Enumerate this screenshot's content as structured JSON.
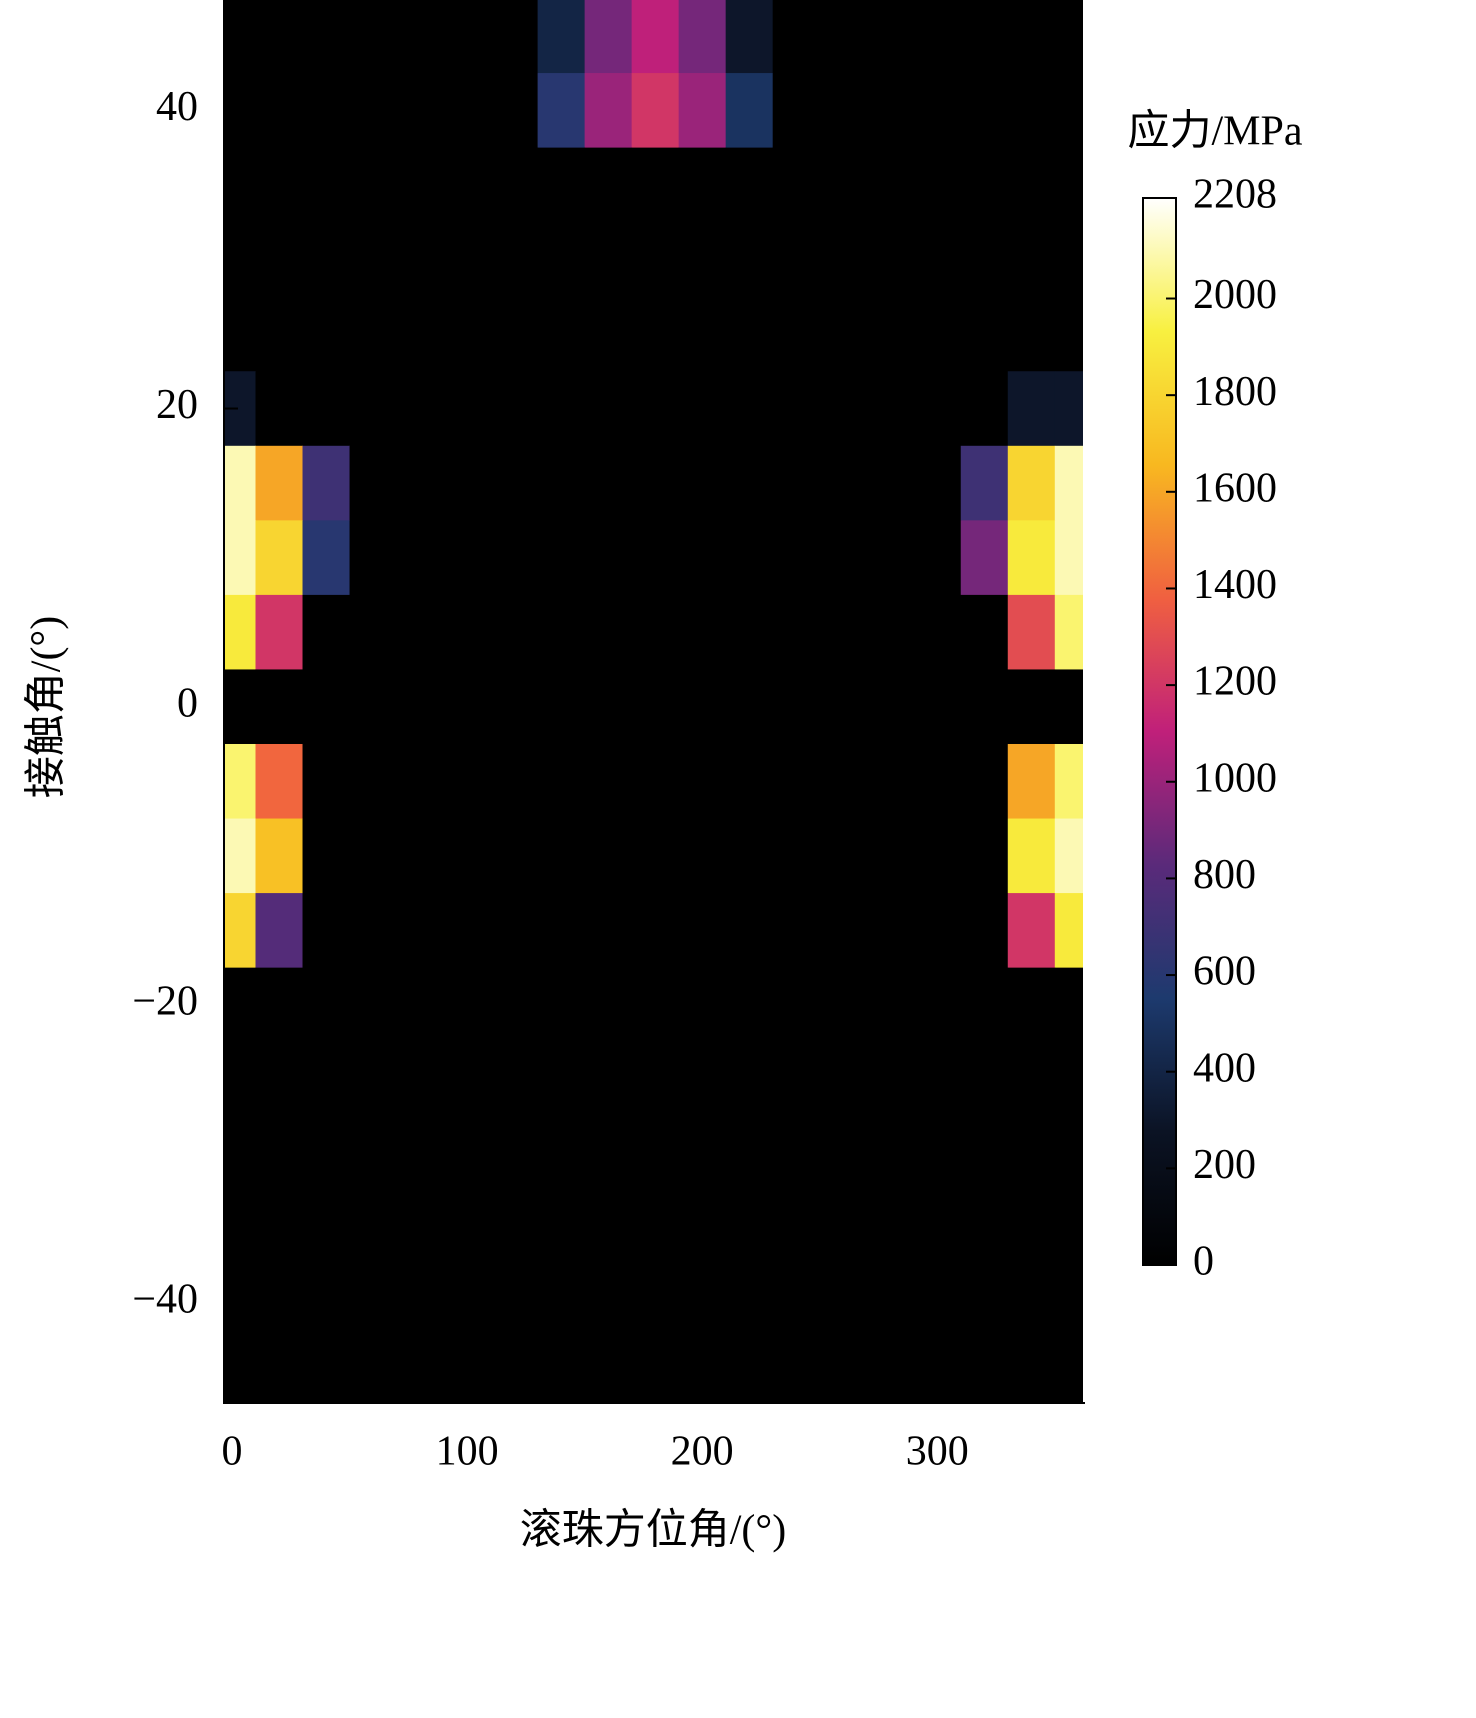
{
  "chart_data": {
    "type": "heatmap",
    "x_label": "滚珠方位角/(°)",
    "y_label": "接触角/(°)",
    "colorbar_label": "应力/MPa",
    "x": [
      0,
      20,
      40,
      60,
      80,
      100,
      120,
      140,
      160,
      180,
      200,
      220,
      240,
      260,
      280,
      300,
      320,
      340,
      360
    ],
    "y": [
      45,
      40,
      35,
      30,
      25,
      20,
      15,
      10,
      5,
      0,
      -5,
      -10,
      -15,
      -20,
      -25,
      -30,
      -35,
      -40,
      -45
    ],
    "z": [
      [
        0,
        0,
        0,
        0,
        0,
        0,
        0,
        400,
        900,
        1100,
        900,
        300,
        0,
        0,
        0,
        0,
        0,
        0,
        0
      ],
      [
        0,
        0,
        0,
        0,
        0,
        0,
        0,
        600,
        1000,
        1200,
        1000,
        500,
        0,
        0,
        0,
        0,
        0,
        0,
        0
      ],
      [
        0,
        0,
        0,
        0,
        0,
        0,
        0,
        0,
        0,
        0,
        0,
        0,
        0,
        0,
        0,
        0,
        0,
        0,
        0
      ],
      [
        0,
        0,
        0,
        0,
        0,
        0,
        0,
        0,
        0,
        0,
        0,
        0,
        0,
        0,
        0,
        0,
        0,
        0,
        0
      ],
      [
        0,
        0,
        0,
        0,
        0,
        0,
        0,
        0,
        0,
        0,
        0,
        0,
        0,
        0,
        0,
        0,
        0,
        0,
        0
      ],
      [
        300,
        0,
        0,
        0,
        0,
        0,
        0,
        0,
        0,
        0,
        0,
        0,
        0,
        0,
        0,
        0,
        0,
        300,
        300
      ],
      [
        2100,
        1600,
        700,
        0,
        0,
        0,
        0,
        0,
        0,
        0,
        0,
        0,
        0,
        0,
        0,
        0,
        700,
        1800,
        2100
      ],
      [
        2100,
        1800,
        600,
        0,
        0,
        0,
        0,
        0,
        0,
        0,
        0,
        0,
        0,
        0,
        0,
        0,
        900,
        1900,
        2100
      ],
      [
        1900,
        1200,
        0,
        0,
        0,
        0,
        0,
        0,
        0,
        0,
        0,
        0,
        0,
        0,
        0,
        0,
        0,
        1300,
        2000
      ],
      [
        0,
        0,
        0,
        0,
        0,
        0,
        0,
        0,
        0,
        0,
        0,
        0,
        0,
        0,
        0,
        0,
        0,
        0,
        0
      ],
      [
        2000,
        1400,
        0,
        0,
        0,
        0,
        0,
        0,
        0,
        0,
        0,
        0,
        0,
        0,
        0,
        0,
        0,
        1600,
        2000
      ],
      [
        2100,
        1700,
        0,
        0,
        0,
        0,
        0,
        0,
        0,
        0,
        0,
        0,
        0,
        0,
        0,
        0,
        0,
        1900,
        2100
      ],
      [
        1800,
        800,
        0,
        0,
        0,
        0,
        0,
        0,
        0,
        0,
        0,
        0,
        0,
        0,
        0,
        0,
        0,
        1200,
        1900
      ],
      [
        0,
        0,
        0,
        0,
        0,
        0,
        0,
        0,
        0,
        0,
        0,
        0,
        0,
        0,
        0,
        0,
        0,
        0,
        0
      ],
      [
        0,
        0,
        0,
        0,
        0,
        0,
        0,
        0,
        0,
        0,
        0,
        0,
        0,
        0,
        0,
        0,
        0,
        0,
        0
      ],
      [
        0,
        0,
        0,
        0,
        0,
        0,
        0,
        0,
        0,
        0,
        0,
        0,
        0,
        0,
        0,
        0,
        0,
        0,
        0
      ],
      [
        0,
        0,
        0,
        0,
        0,
        0,
        0,
        0,
        0,
        0,
        0,
        0,
        0,
        0,
        0,
        0,
        0,
        0,
        0
      ],
      [
        0,
        0,
        0,
        0,
        0,
        0,
        0,
        0,
        0,
        0,
        0,
        0,
        0,
        0,
        0,
        0,
        0,
        0,
        0
      ],
      [
        0,
        0,
        0,
        0,
        0,
        0,
        0,
        0,
        0,
        0,
        0,
        0,
        0,
        0,
        0,
        0,
        0,
        0,
        0
      ]
    ],
    "xlim": [
      -3.4,
      362
    ],
    "ylim": [
      -46.7,
      47.4
    ],
    "xticks": [
      0,
      100,
      200,
      300
    ],
    "yticks": [
      {
        "value": -40,
        "label": "−40"
      },
      {
        "value": -20,
        "label": "−20"
      },
      0,
      20,
      40
    ],
    "clim": [
      0,
      2208
    ],
    "cticks": [
      0,
      200,
      400,
      600,
      800,
      1000,
      1200,
      1400,
      1600,
      1800,
      2000,
      2208
    ],
    "colormap": [
      "#000000",
      "#0b1324",
      "#1d3a6e",
      "#5a2a7a",
      "#c0207a",
      "#f06040",
      "#f8b820",
      "#f8f040",
      "#ffffff"
    ]
  }
}
